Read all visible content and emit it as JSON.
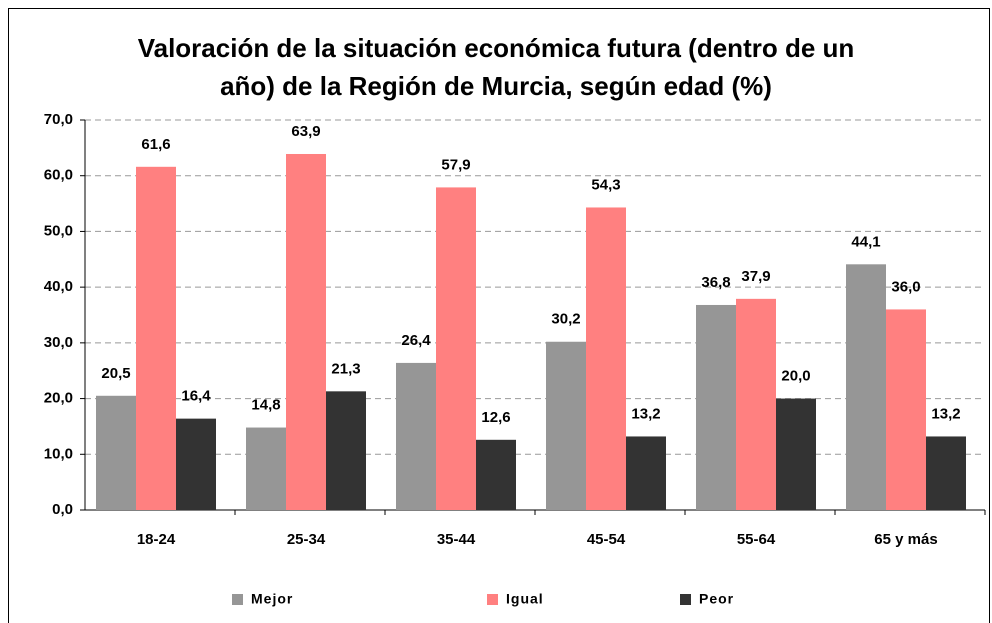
{
  "chart_data": {
    "type": "bar",
    "title": [
      "Valoración de la situación económica futura (dentro de un",
      "año) de la Región de Murcia, según edad (%)"
    ],
    "categories": [
      "18-24",
      "25-34",
      "35-44",
      "45-54",
      "55-64",
      "65 y más"
    ],
    "series": [
      {
        "name": "Mejor",
        "color": "#969696",
        "values": [
          20.5,
          14.8,
          26.4,
          30.2,
          36.8,
          44.1
        ],
        "value_labels": [
          "20,5",
          "14,8",
          "26,4",
          "30,2",
          "36,8",
          "44,1"
        ]
      },
      {
        "name": "Igual",
        "color": "#ff8080",
        "values": [
          61.6,
          63.9,
          57.9,
          54.3,
          37.9,
          36.0
        ],
        "value_labels": [
          "61,6",
          "63,9",
          "57,9",
          "54,3",
          "37,9",
          "36,0"
        ]
      },
      {
        "name": "Peor",
        "color": "#333333",
        "values": [
          16.4,
          21.3,
          12.6,
          13.2,
          20.0,
          13.2
        ],
        "value_labels": [
          "16,4",
          "21,3",
          "12,6",
          "13,2",
          "20,0",
          "13,2"
        ]
      }
    ],
    "ylim": [
      0,
      70
    ],
    "yticks": [
      {
        "value": 0,
        "label": "0,0"
      },
      {
        "value": 10,
        "label": "10,0"
      },
      {
        "value": 20,
        "label": "20,0"
      },
      {
        "value": 30,
        "label": "30,0"
      },
      {
        "value": 40,
        "label": "40,0"
      },
      {
        "value": 50,
        "label": "50,0"
      },
      {
        "value": 60,
        "label": "60,0"
      },
      {
        "value": 70,
        "label": "70,0"
      }
    ],
    "grid": true,
    "legend": "bottom"
  }
}
